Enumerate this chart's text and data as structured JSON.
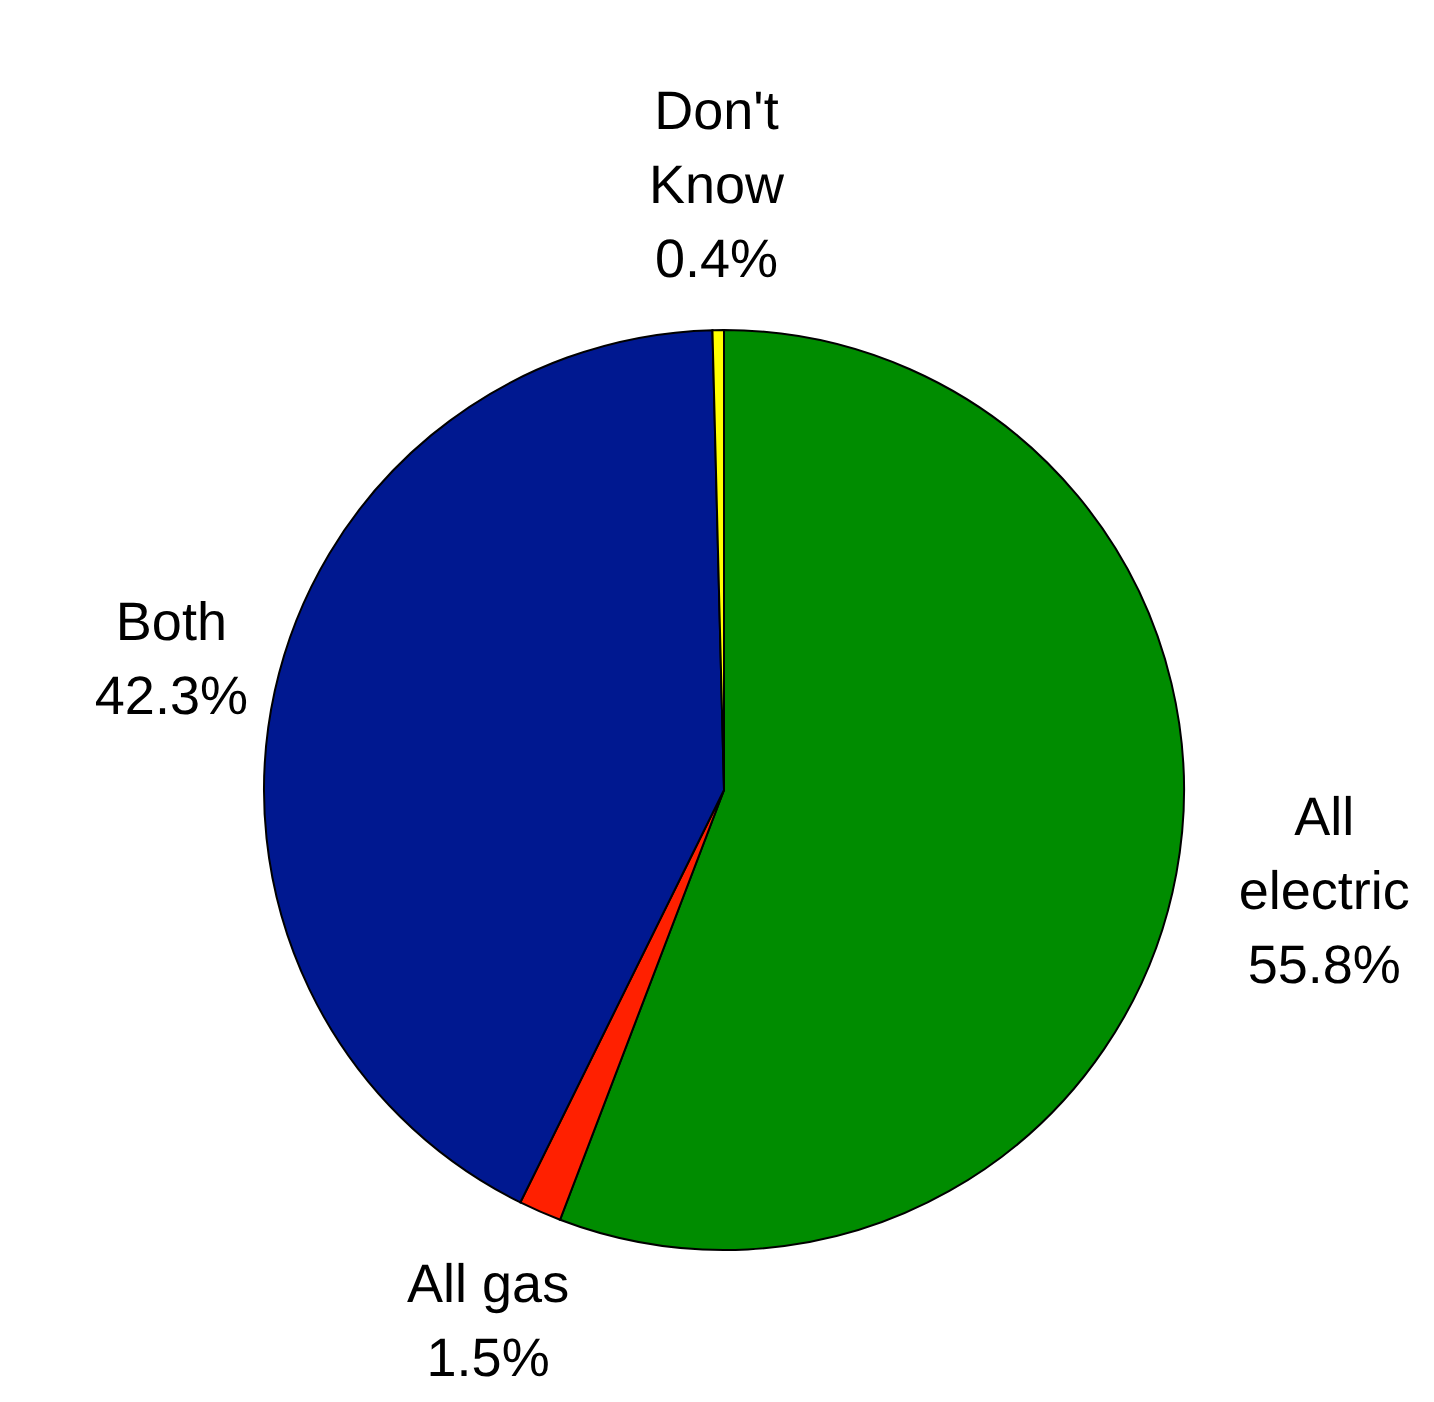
{
  "chart_data": {
    "type": "pie",
    "categories": [
      "All electric",
      "All gas",
      "Both",
      "Don't Know"
    ],
    "values": [
      55.8,
      1.5,
      42.3,
      0.4
    ],
    "colors": [
      "#008c00",
      "#ff2000",
      "#001890",
      "#ffff00"
    ],
    "value_labels": [
      "55.8%",
      "1.5%",
      "42.3%",
      "0.4%"
    ],
    "legend": false
  }
}
